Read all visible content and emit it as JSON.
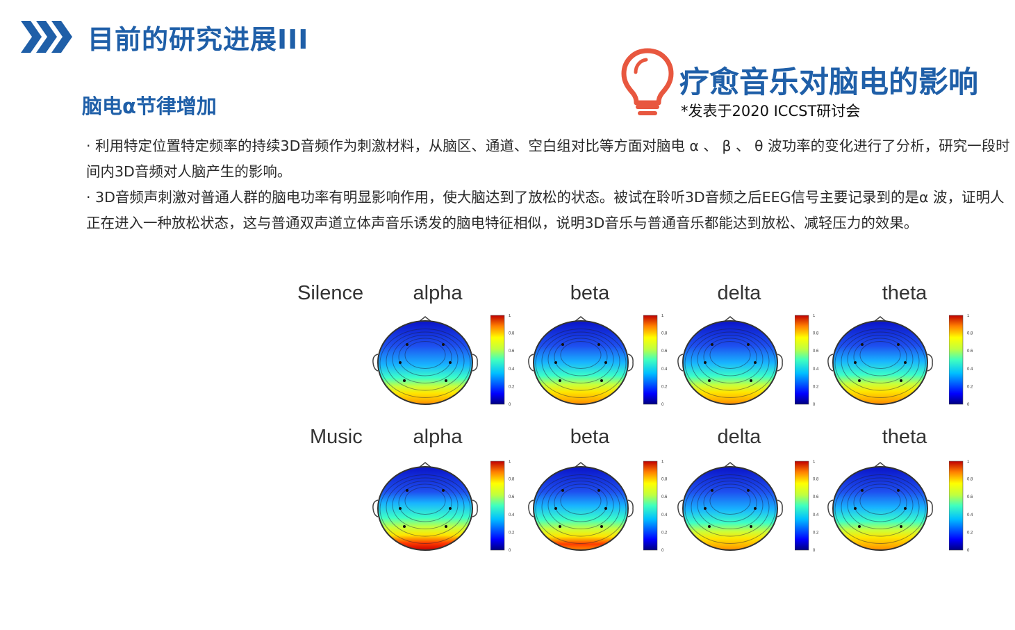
{
  "header": {
    "title": "目前的研究进展III",
    "chevron_icon": "triple-chevron-icon",
    "accent": "#1f5fa8"
  },
  "callout": {
    "icon": "lightbulb-icon",
    "icon_color": "#e8573f",
    "title": "疗愈音乐对脑电的影响",
    "subtitle": "*发表于2020 ICCST研讨会"
  },
  "section": {
    "heading": "脑电α节律增加"
  },
  "paragraphs": [
    "· 利用特定位置特定频率的持续3D音频作为刺激材料，从脑区、通道、空白组对比等方面对脑电 α 、 β 、 θ 波功率的变化进行了分析，研究一段时间内3D音频对人脑产生的影响。",
    "· 3D音频声刺激对普通人群的脑电功率有明显影响作用，使大脑达到了放松的状态。被试在聆听3D音频之后EEG信号主要记录到的是α 波，证明人正在进入一种放松状态，这与普通双声道立体声音乐诱发的脑电特征相似，说明3D音乐与普通音乐都能达到放松、减轻压力的效果。"
  ],
  "figure": {
    "rows": [
      {
        "label": "Silence",
        "maps": [
          {
            "band": "alpha",
            "level": 0.15
          },
          {
            "band": "beta",
            "level": 0.35
          },
          {
            "band": "delta",
            "level": 0.3
          },
          {
            "band": "theta",
            "level": 0.45
          }
        ]
      },
      {
        "label": "Music",
        "maps": [
          {
            "band": "alpha",
            "level": 0.75
          },
          {
            "band": "beta",
            "level": 0.55
          },
          {
            "band": "delta",
            "level": 0.25
          },
          {
            "band": "theta",
            "level": 0.4
          }
        ]
      }
    ],
    "colorbar_ticks": [
      "0",
      "0.2",
      "0.4",
      "0.6",
      "0.8",
      "1"
    ]
  }
}
